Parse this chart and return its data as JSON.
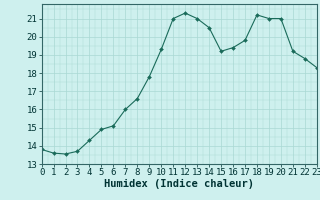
{
  "x": [
    0,
    1,
    2,
    3,
    4,
    5,
    6,
    7,
    8,
    9,
    10,
    11,
    12,
    13,
    14,
    15,
    16,
    17,
    18,
    19,
    20,
    21,
    22,
    23
  ],
  "y": [
    13.8,
    13.6,
    13.55,
    13.7,
    14.3,
    14.9,
    15.1,
    16.0,
    16.6,
    17.8,
    19.3,
    21.0,
    21.3,
    21.0,
    20.5,
    19.2,
    19.4,
    19.8,
    21.2,
    21.0,
    21.0,
    19.2,
    18.8,
    18.3
  ],
  "xlim": [
    0,
    23
  ],
  "ylim": [
    13,
    21.8
  ],
  "yticks": [
    13,
    14,
    15,
    16,
    17,
    18,
    19,
    20,
    21
  ],
  "xticks": [
    0,
    1,
    2,
    3,
    4,
    5,
    6,
    7,
    8,
    9,
    10,
    11,
    12,
    13,
    14,
    15,
    16,
    17,
    18,
    19,
    20,
    21,
    22,
    23
  ],
  "xlabel": "Humidex (Indice chaleur)",
  "line_color": "#1a6b5a",
  "marker_color": "#1a6b5a",
  "bg_color": "#cef0ee",
  "grid_color": "#aad8d4",
  "tick_label_fontsize": 6.5,
  "xlabel_fontsize": 7.5
}
